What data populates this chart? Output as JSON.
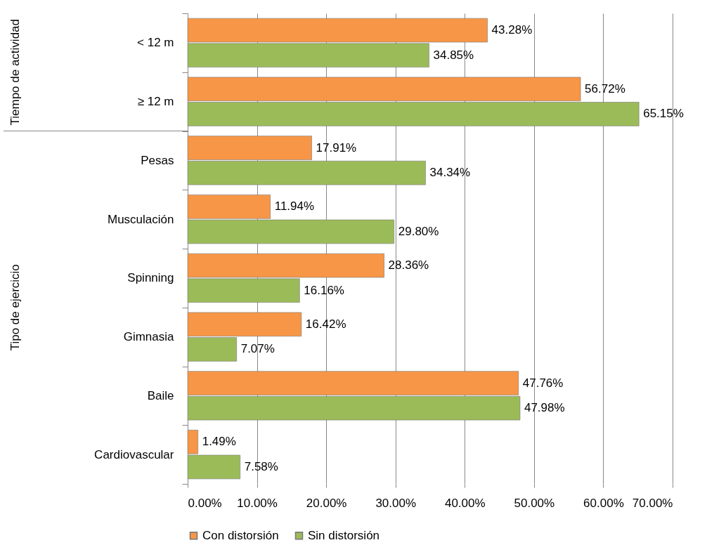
{
  "chart_data": {
    "type": "bar",
    "orientation": "horizontal",
    "categories": [
      "< 12 m",
      "≥ 12 m",
      "Pesas",
      "Musculación",
      "Spinning",
      "Gimnasia",
      "Baile",
      "Cardiovascular"
    ],
    "series": [
      {
        "name": "Con distorsión",
        "color": "#f79646",
        "values": [
          43.28,
          56.72,
          17.91,
          11.94,
          28.36,
          16.42,
          47.76,
          1.49
        ],
        "value_labels": [
          "43.28%",
          "56.72%",
          "17.91%",
          "11.94%",
          "28.36%",
          "16.42%",
          "47.76%",
          "1.49%"
        ]
      },
      {
        "name": "Sin distorsión",
        "color": "#9bbb59",
        "values": [
          34.85,
          65.15,
          34.34,
          29.8,
          16.16,
          7.07,
          47.98,
          7.58
        ],
        "value_labels": [
          "34.85%",
          "65.15%",
          "34.34%",
          "29.80%",
          "16.16%",
          "7.07%",
          "47.98%",
          "7.58%"
        ]
      }
    ],
    "xlim": [
      0,
      70
    ],
    "xticks": [
      {
        "value": 0,
        "label": "0.00%"
      },
      {
        "value": 10,
        "label": "10.00%"
      },
      {
        "value": 20,
        "label": "20.00%"
      },
      {
        "value": 30,
        "label": "30.00%"
      },
      {
        "value": 40,
        "label": "40.00%"
      },
      {
        "value": 50,
        "label": "50.00%"
      },
      {
        "value": 60,
        "label": "60.00%"
      },
      {
        "value": 70,
        "label": "70.00%"
      }
    ],
    "grid": "x",
    "legend": "bottom",
    "annotations": [
      "Tiempo de actividad",
      "Tipo de ejercicio"
    ]
  }
}
